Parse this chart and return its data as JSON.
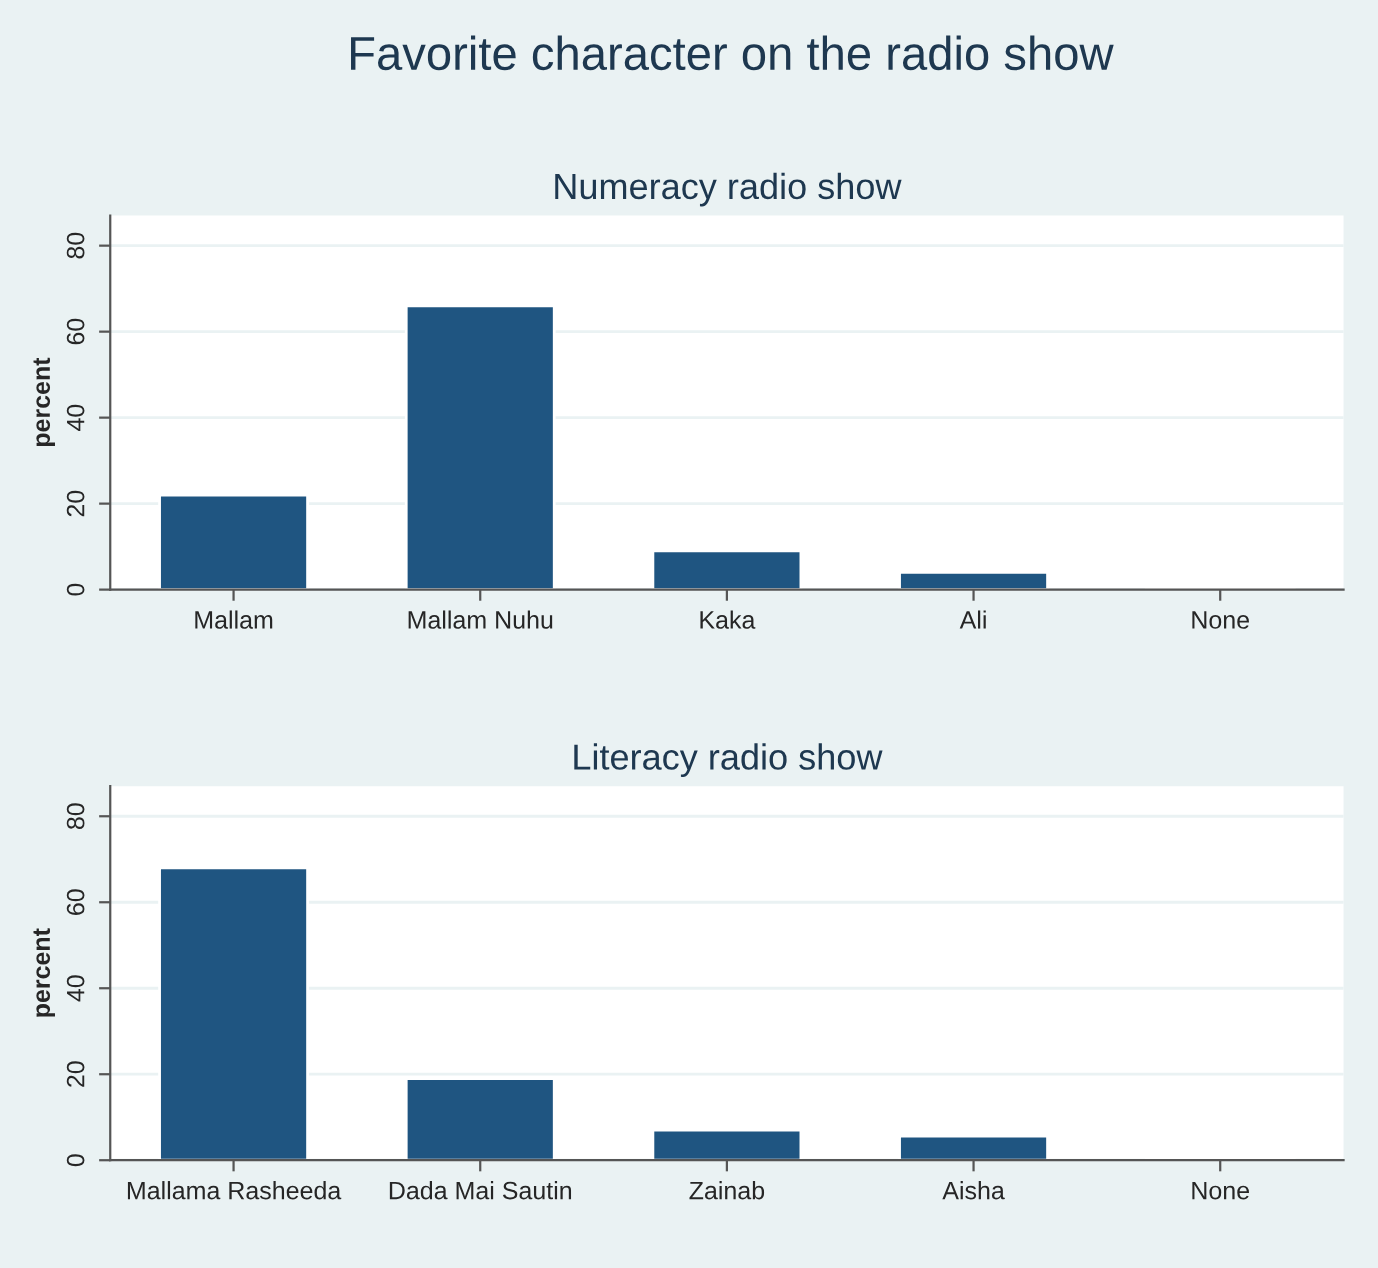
{
  "chart_data": [
    {
      "type": "bar",
      "title": "Favorite character on the radio show",
      "subtitle": "Numeracy radio show",
      "ylabel": "percent",
      "categories": [
        "Mallam",
        "Mallam Nuhu",
        "Kaka",
        "Ali",
        "None"
      ],
      "values": [
        22,
        66,
        9,
        4,
        0.3
      ],
      "color": "#1f5581",
      "ylim": [
        0,
        87
      ],
      "yticks": [
        0,
        20,
        40,
        60,
        80
      ],
      "grid": "y"
    },
    {
      "type": "bar",
      "subtitle": "Literacy radio show",
      "ylabel": "percent",
      "categories": [
        "Mallama Rasheeda",
        "Dada Mai Sautin",
        "Zainab",
        "Aisha",
        "None"
      ],
      "values": [
        68,
        19,
        7,
        5.6,
        0.5
      ],
      "color": "#1f5581",
      "ylim": [
        0,
        87
      ],
      "yticks": [
        0,
        20,
        40,
        60,
        80
      ],
      "grid": "y"
    }
  ]
}
